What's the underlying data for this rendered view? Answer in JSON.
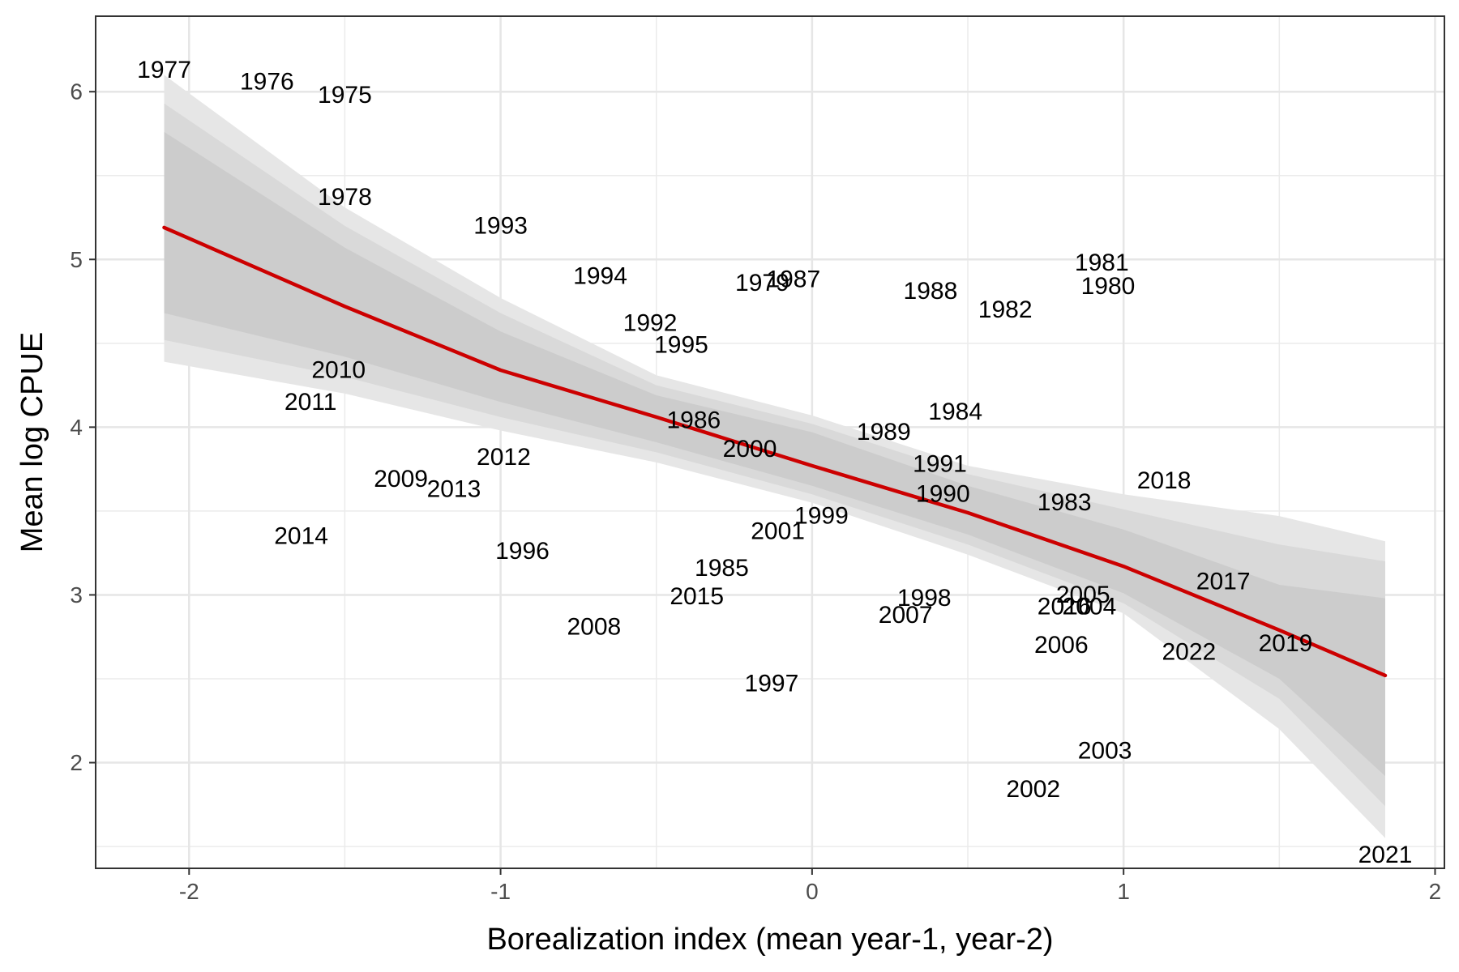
{
  "chart_data": {
    "type": "scatter",
    "title": "",
    "xlabel": "Borealization index (mean year-1, year-2)",
    "ylabel": "Mean log CPUE",
    "xlim": [
      -2.3,
      2.03
    ],
    "ylim": [
      1.37,
      6.45
    ],
    "x_ticks": [
      -2,
      -1,
      0,
      1,
      2
    ],
    "y_ticks": [
      2,
      3,
      4,
      5,
      6
    ],
    "x_tick_labels": [
      "-2",
      "-1",
      "0",
      "1",
      "2"
    ],
    "y_tick_labels": [
      "2",
      "3",
      "4",
      "5",
      "6"
    ],
    "grid": true,
    "legend": "none",
    "points": [
      {
        "label": "1975",
        "x": -1.5,
        "y": 5.98
      },
      {
        "label": "1976",
        "x": -1.75,
        "y": 6.06
      },
      {
        "label": "1977",
        "x": -2.08,
        "y": 6.13
      },
      {
        "label": "1978",
        "x": -1.5,
        "y": 5.37
      },
      {
        "label": "1979",
        "x": -0.16,
        "y": 4.86
      },
      {
        "label": "1980",
        "x": 0.95,
        "y": 4.84
      },
      {
        "label": "1981",
        "x": 0.93,
        "y": 4.98
      },
      {
        "label": "1982",
        "x": 0.62,
        "y": 4.7
      },
      {
        "label": "1983",
        "x": 0.81,
        "y": 3.55
      },
      {
        "label": "1984",
        "x": 0.46,
        "y": 4.09
      },
      {
        "label": "1985",
        "x": -0.29,
        "y": 3.16
      },
      {
        "label": "1986",
        "x": -0.38,
        "y": 4.04
      },
      {
        "label": "1987",
        "x": -0.06,
        "y": 4.88
      },
      {
        "label": "1988",
        "x": 0.38,
        "y": 4.81
      },
      {
        "label": "1989",
        "x": 0.23,
        "y": 3.97
      },
      {
        "label": "1990",
        "x": 0.42,
        "y": 3.6
      },
      {
        "label": "1991",
        "x": 0.41,
        "y": 3.78
      },
      {
        "label": "1992",
        "x": -0.52,
        "y": 4.62
      },
      {
        "label": "1993",
        "x": -1.0,
        "y": 5.2
      },
      {
        "label": "1994",
        "x": -0.68,
        "y": 4.9
      },
      {
        "label": "1995",
        "x": -0.42,
        "y": 4.49
      },
      {
        "label": "1996",
        "x": -0.93,
        "y": 3.26
      },
      {
        "label": "1997",
        "x": -0.13,
        "y": 2.47
      },
      {
        "label": "1998",
        "x": 0.36,
        "y": 2.98
      },
      {
        "label": "1999",
        "x": 0.03,
        "y": 3.47
      },
      {
        "label": "2000",
        "x": -0.2,
        "y": 3.87
      },
      {
        "label": "2001",
        "x": -0.11,
        "y": 3.38
      },
      {
        "label": "2002",
        "x": 0.71,
        "y": 1.84
      },
      {
        "label": "2003",
        "x": 0.94,
        "y": 2.07
      },
      {
        "label": "2004",
        "x": 0.89,
        "y": 2.93
      },
      {
        "label": "2005",
        "x": 0.87,
        "y": 3.0
      },
      {
        "label": "2006",
        "x": 0.8,
        "y": 2.7
      },
      {
        "label": "2007",
        "x": 0.3,
        "y": 2.88
      },
      {
        "label": "2008",
        "x": -0.7,
        "y": 2.81
      },
      {
        "label": "2009",
        "x": -1.32,
        "y": 3.69
      },
      {
        "label": "2010",
        "x": -1.52,
        "y": 4.34
      },
      {
        "label": "2011",
        "x": -1.61,
        "y": 4.15
      },
      {
        "label": "2012",
        "x": -0.99,
        "y": 3.82
      },
      {
        "label": "2013",
        "x": -1.15,
        "y": 3.63
      },
      {
        "label": "2014",
        "x": -1.64,
        "y": 3.35
      },
      {
        "label": "2015",
        "x": -0.37,
        "y": 2.99
      },
      {
        "label": "2016",
        "x": 0.81,
        "y": 2.93
      },
      {
        "label": "2017",
        "x": 1.32,
        "y": 3.08
      },
      {
        "label": "2018",
        "x": 1.13,
        "y": 3.68
      },
      {
        "label": "2019",
        "x": 1.52,
        "y": 2.71
      },
      {
        "label": "2021",
        "x": 1.84,
        "y": 1.45
      },
      {
        "label": "2022",
        "x": 1.21,
        "y": 2.66
      }
    ],
    "fit_line": {
      "color": "#cc0000",
      "x": [
        -2.08,
        -1.5,
        -1.0,
        -0.5,
        0.0,
        0.5,
        1.0,
        1.5,
        1.84
      ],
      "y": [
        5.19,
        4.72,
        4.34,
        4.06,
        3.77,
        3.49,
        3.17,
        2.79,
        2.52
      ]
    },
    "bands": [
      {
        "name": "outer",
        "color": "#e6e6e6",
        "x": [
          -2.08,
          -1.5,
          -1.0,
          -0.5,
          0.0,
          0.5,
          1.0,
          1.5,
          1.84
        ],
        "lower": [
          4.39,
          4.2,
          3.98,
          3.79,
          3.55,
          3.24,
          2.89,
          2.2,
          1.55
        ],
        "upper": [
          6.1,
          5.31,
          4.77,
          4.31,
          4.07,
          3.77,
          3.6,
          3.47,
          3.32
        ]
      },
      {
        "name": "middle",
        "color": "#d9d9d9",
        "x": [
          -2.08,
          -1.5,
          -1.0,
          -0.5,
          0.0,
          0.5,
          1.0,
          1.5,
          1.84
        ],
        "lower": [
          4.52,
          4.3,
          4.06,
          3.85,
          3.6,
          3.3,
          2.95,
          2.38,
          1.74
        ],
        "upper": [
          5.93,
          5.2,
          4.68,
          4.25,
          4.02,
          3.72,
          3.51,
          3.3,
          3.2
        ]
      },
      {
        "name": "inner",
        "color": "#cccccc",
        "x": [
          -2.08,
          -1.5,
          -1.0,
          -0.5,
          0.0,
          0.5,
          1.0,
          1.5,
          1.84
        ],
        "lower": [
          4.68,
          4.42,
          4.15,
          3.91,
          3.65,
          3.36,
          3.01,
          2.5,
          1.92
        ],
        "upper": [
          5.76,
          5.07,
          4.57,
          4.19,
          3.97,
          3.65,
          3.39,
          3.06,
          2.98
        ]
      }
    ]
  }
}
